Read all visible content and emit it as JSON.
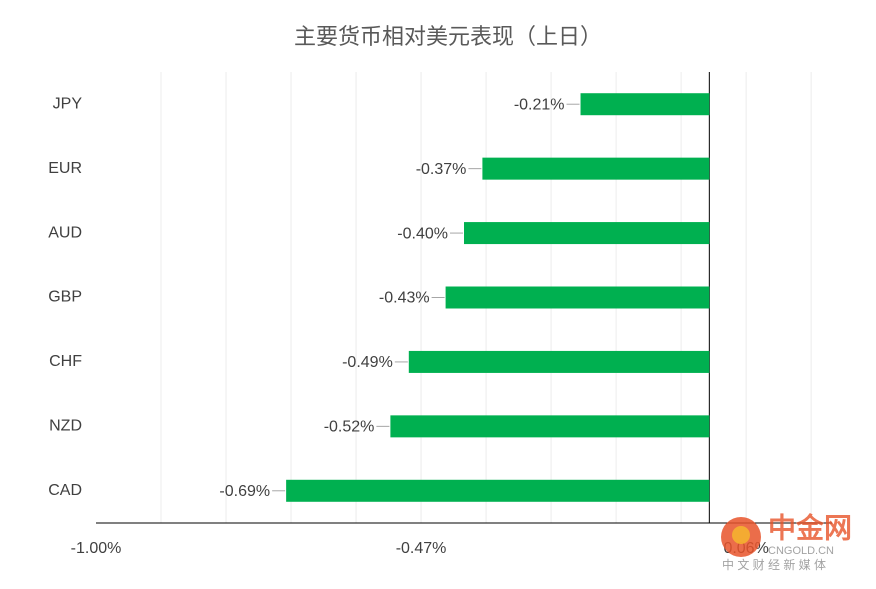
{
  "chart_data": {
    "type": "hbar",
    "title": "主要货币相对美元表现（上日）",
    "categories": [
      "JPY",
      "EUR",
      "AUD",
      "GBP",
      "CHF",
      "NZD",
      "CAD"
    ],
    "values": [
      -0.21,
      -0.37,
      -0.4,
      -0.43,
      -0.49,
      -0.52,
      -0.69
    ],
    "value_labels": [
      "-0.21%",
      "-0.37%",
      "-0.40%",
      "-0.43%",
      "-0.49%",
      "-0.52%",
      "-0.69%"
    ],
    "color": "#00b050",
    "xlim": [
      -1.0,
      0.2
    ],
    "xticks": [
      {
        "value": -1.0,
        "label": "-1.00%"
      },
      {
        "value": -0.47,
        "label": "-0.47%"
      },
      {
        "value": 0.06,
        "label": "0.06%"
      }
    ],
    "grid_xticks": [
      -0.894,
      -0.788,
      -0.682,
      -0.576,
      -0.47,
      -0.364,
      -0.258,
      -0.152,
      -0.046,
      0.06,
      0.166
    ],
    "grid": true
  },
  "watermark": {
    "name": "中金网",
    "site": "CNGOLD.CN",
    "tagline": "中 文 财 经 新 媒 体"
  }
}
